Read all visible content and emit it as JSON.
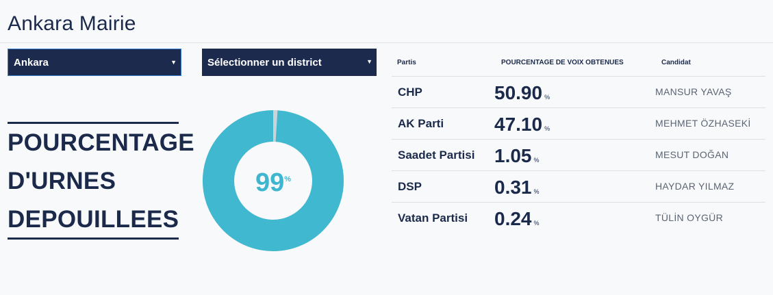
{
  "header": {
    "title": "Ankara Mairie"
  },
  "filters": {
    "city": {
      "value": "Ankara"
    },
    "district": {
      "value": "Sélectionner un district"
    }
  },
  "turnout": {
    "title_lines": [
      "POURCENTAGE",
      "D'URNES",
      "DEPOUILLEES"
    ],
    "value": 99,
    "value_label": "99",
    "unit": "%",
    "colors": {
      "filled": "#3fb8d0",
      "remaining": "#c9d3d8"
    }
  },
  "results": {
    "headers": {
      "party": "Partis",
      "percent": "POURCENTAGE DE VOIX OBTENUES",
      "candidate": "Candidat"
    },
    "rows": [
      {
        "party": "CHP",
        "percent": "50.90",
        "unit": "%",
        "candidate": "MANSUR YAVAŞ"
      },
      {
        "party": "AK Parti",
        "percent": "47.10",
        "unit": "%",
        "candidate": "MEHMET ÖZHASEKİ"
      },
      {
        "party": "Saadet Partisi",
        "percent": "1.05",
        "unit": "%",
        "candidate": "MESUT DOĞAN"
      },
      {
        "party": "DSP",
        "percent": "0.31",
        "unit": "%",
        "candidate": "HAYDAR YILMAZ"
      },
      {
        "party": "Vatan Partisi",
        "percent": "0.24",
        "unit": "%",
        "candidate": "TÜLİN OYGÜR"
      }
    ]
  }
}
